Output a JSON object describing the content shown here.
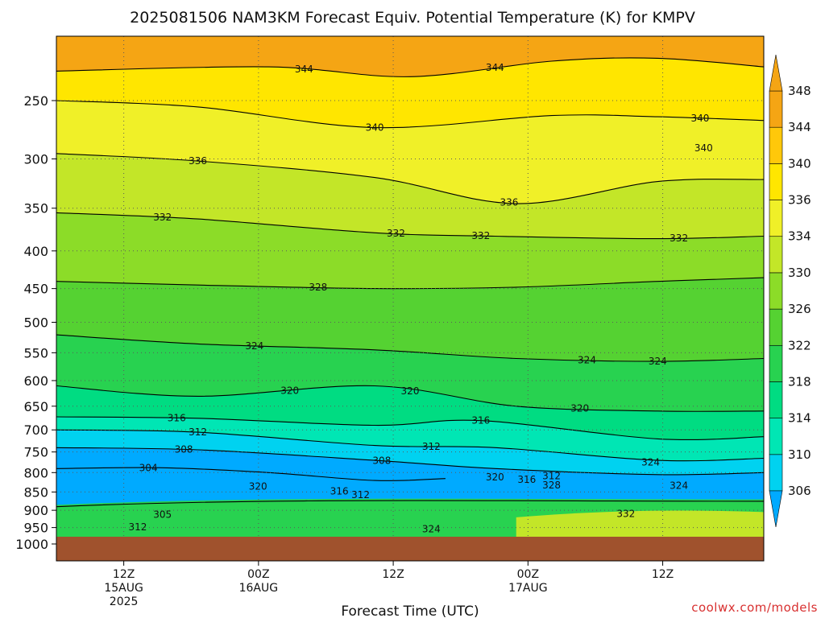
{
  "chart_data": {
    "type": "heatmap",
    "title": "2025081506 NAM3KM Forecast Equiv. Potential Temperature (K) for KMPV",
    "xlabel": "Forecast Time (UTC)",
    "ylabel": "",
    "credit": "coolwx.com/models",
    "y_axis": {
      "scale": "pressure (log)",
      "ylim": [
        1000,
        200
      ],
      "ticks": [
        "250",
        "300",
        "350",
        "400",
        "450",
        "500",
        "550",
        "600",
        "650",
        "700",
        "750",
        "800",
        "850",
        "900",
        "950",
        "1000"
      ]
    },
    "x_axis": {
      "xlim": [
        "2025-08-15 06Z",
        "2025-08-17 21Z"
      ],
      "ticks": [
        {
          "value": "2025-08-15 12Z",
          "lines": [
            "12Z",
            "15AUG",
            "2025"
          ]
        },
        {
          "value": "2025-08-16 00Z",
          "lines": [
            "00Z",
            "16AUG"
          ]
        },
        {
          "value": "2025-08-16 12Z",
          "lines": [
            "12Z"
          ]
        },
        {
          "value": "2025-08-17 00Z",
          "lines": [
            "00Z",
            "17AUG"
          ]
        },
        {
          "value": "2025-08-17 12Z",
          "lines": [
            "12Z"
          ]
        }
      ]
    },
    "grid": true,
    "colorbar": {
      "levels": [
        "306",
        "310",
        "314",
        "318",
        "322",
        "326",
        "330",
        "334",
        "336",
        "340",
        "344",
        "348"
      ],
      "colors": [
        "#00aaff",
        "#00d2f0",
        "#00e6b4",
        "#00dc82",
        "#28d250",
        "#55d232",
        "#8cdc28",
        "#c3e628",
        "#f0f028",
        "#ffe600",
        "#ffc80a",
        "#f5a514"
      ]
    },
    "contours": [
      {
        "value": 344,
        "p": [
          [
            0.0,
            228
          ],
          [
            0.3,
            225
          ],
          [
            0.5,
            232
          ],
          [
            0.7,
            221
          ],
          [
            0.85,
            219
          ],
          [
            1.0,
            225
          ]
        ],
        "label_at": [
          0.35,
          0.62
        ]
      },
      {
        "value": 340,
        "p": [
          [
            0.0,
            250
          ],
          [
            0.2,
            255
          ],
          [
            0.45,
            272
          ],
          [
            0.7,
            262
          ],
          [
            0.85,
            263
          ],
          [
            1.0,
            266
          ]
        ],
        "label_at": [
          0.45,
          0.91
        ]
      },
      {
        "value": 336,
        "p": [
          [
            0.0,
            295
          ],
          [
            0.2,
            302
          ],
          [
            0.45,
            318
          ],
          [
            0.65,
            345
          ],
          [
            0.85,
            322
          ],
          [
            1.0,
            320
          ]
        ],
        "label_at": [
          0.2,
          0.64
        ]
      },
      {
        "value": 332,
        "p": [
          [
            0.0,
            355
          ],
          [
            0.2,
            362
          ],
          [
            0.45,
            378
          ],
          [
            0.62,
            382
          ],
          [
            0.85,
            385
          ],
          [
            1.0,
            382
          ]
        ],
        "label_at": [
          0.15,
          0.48,
          0.6,
          0.88
        ]
      },
      {
        "value": 328,
        "p": [
          [
            0.0,
            440
          ],
          [
            0.2,
            445
          ],
          [
            0.45,
            450
          ],
          [
            0.65,
            448
          ],
          [
            0.85,
            440
          ],
          [
            1.0,
            435
          ]
        ],
        "label_at": [
          0.37
        ]
      },
      {
        "value": 324,
        "p": [
          [
            0.0,
            520
          ],
          [
            0.2,
            535
          ],
          [
            0.45,
            545
          ],
          [
            0.65,
            560
          ],
          [
            0.85,
            565
          ],
          [
            1.0,
            560
          ]
        ],
        "label_at": [
          0.28,
          0.75,
          0.85
        ]
      },
      {
        "value": 320,
        "p": [
          [
            0.0,
            610
          ],
          [
            0.2,
            630
          ],
          [
            0.45,
            610
          ],
          [
            0.65,
            650
          ],
          [
            0.85,
            660
          ],
          [
            1.0,
            660
          ]
        ],
        "label_at": [
          0.33,
          0.5,
          0.74
        ]
      },
      {
        "value": 316,
        "p": [
          [
            0.0,
            672
          ],
          [
            0.2,
            675
          ],
          [
            0.45,
            690
          ],
          [
            0.6,
            680
          ],
          [
            0.85,
            720
          ],
          [
            1.0,
            715
          ]
        ],
        "label_at": [
          0.17,
          0.6
        ]
      },
      {
        "value": 312,
        "p": [
          [
            0.0,
            700
          ],
          [
            0.2,
            705
          ],
          [
            0.45,
            735
          ],
          [
            0.62,
            740
          ],
          [
            0.85,
            770
          ],
          [
            1.0,
            765
          ]
        ],
        "label_at": [
          0.2,
          0.53
        ]
      },
      {
        "value": 308,
        "p": [
          [
            0.0,
            740
          ],
          [
            0.2,
            745
          ],
          [
            0.45,
            770
          ],
          [
            0.62,
            790
          ],
          [
            0.85,
            805
          ],
          [
            1.0,
            800
          ]
        ],
        "label_at": [
          0.18,
          0.46
        ]
      },
      {
        "value": 304,
        "p": [
          [
            0.0,
            790
          ],
          [
            0.15,
            788
          ],
          [
            0.3,
            800
          ],
          [
            0.45,
            820
          ],
          [
            0.55,
            815
          ]
        ],
        "label_at": [
          0.13
        ]
      }
    ],
    "extra_labels": [
      {
        "text": "320",
        "t": 0.285,
        "p": 835
      },
      {
        "text": "316",
        "t": 0.4,
        "p": 848
      },
      {
        "text": "312",
        "t": 0.43,
        "p": 858
      },
      {
        "text": "320",
        "t": 0.62,
        "p": 812
      },
      {
        "text": "316",
        "t": 0.665,
        "p": 818
      },
      {
        "text": "312",
        "t": 0.7,
        "p": 808
      },
      {
        "text": "328",
        "t": 0.7,
        "p": 832
      },
      {
        "text": "324",
        "t": 0.84,
        "p": 775
      },
      {
        "text": "324",
        "t": 0.88,
        "p": 833
      },
      {
        "text": "305",
        "t": 0.15,
        "p": 912
      },
      {
        "text": "312",
        "t": 0.115,
        "p": 948
      },
      {
        "text": "324",
        "t": 0.53,
        "p": 955
      },
      {
        "text": "332",
        "t": 0.805,
        "p": 910
      },
      {
        "text": "340",
        "t": 0.915,
        "p": 290
      }
    ]
  }
}
